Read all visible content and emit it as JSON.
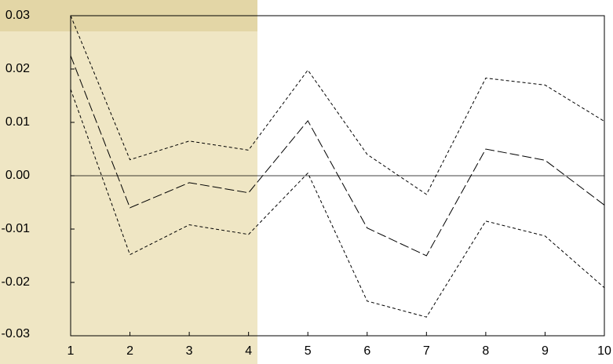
{
  "chart_data": {
    "type": "line",
    "x": [
      1,
      2,
      3,
      4,
      5,
      6,
      7,
      8,
      9,
      10
    ],
    "series": [
      {
        "color": "#000000",
        "dash": "4,3",
        "values": [
          0.03,
          0.003,
          0.0065,
          0.0048,
          0.0198,
          0.004,
          -0.0035,
          0.0183,
          0.017,
          0.0102
        ]
      },
      {
        "color": "#000000",
        "dash": "12,4",
        "values": [
          0.0225,
          -0.006,
          -0.0013,
          -0.0032,
          0.0103,
          -0.0098,
          -0.015,
          0.005,
          0.0029,
          -0.0055
        ]
      },
      {
        "color": "#000000",
        "dash": "4,3",
        "values": [
          0.0162,
          -0.0148,
          -0.0092,
          -0.011,
          0.0005,
          -0.0235,
          -0.0265,
          -0.0085,
          -0.0113,
          -0.021
        ]
      }
    ],
    "xlim": [
      1,
      10
    ],
    "xticks": [
      1,
      2,
      3,
      4,
      5,
      6,
      7,
      8,
      9,
      10
    ],
    "ylim": [
      -0.03,
      0.03
    ],
    "yticks": [
      -0.03,
      -0.02,
      -0.01,
      {
        "value": 0,
        "label": "0.00"
      },
      0.01,
      0.02,
      0.03
    ],
    "zero_line": true
  }
}
